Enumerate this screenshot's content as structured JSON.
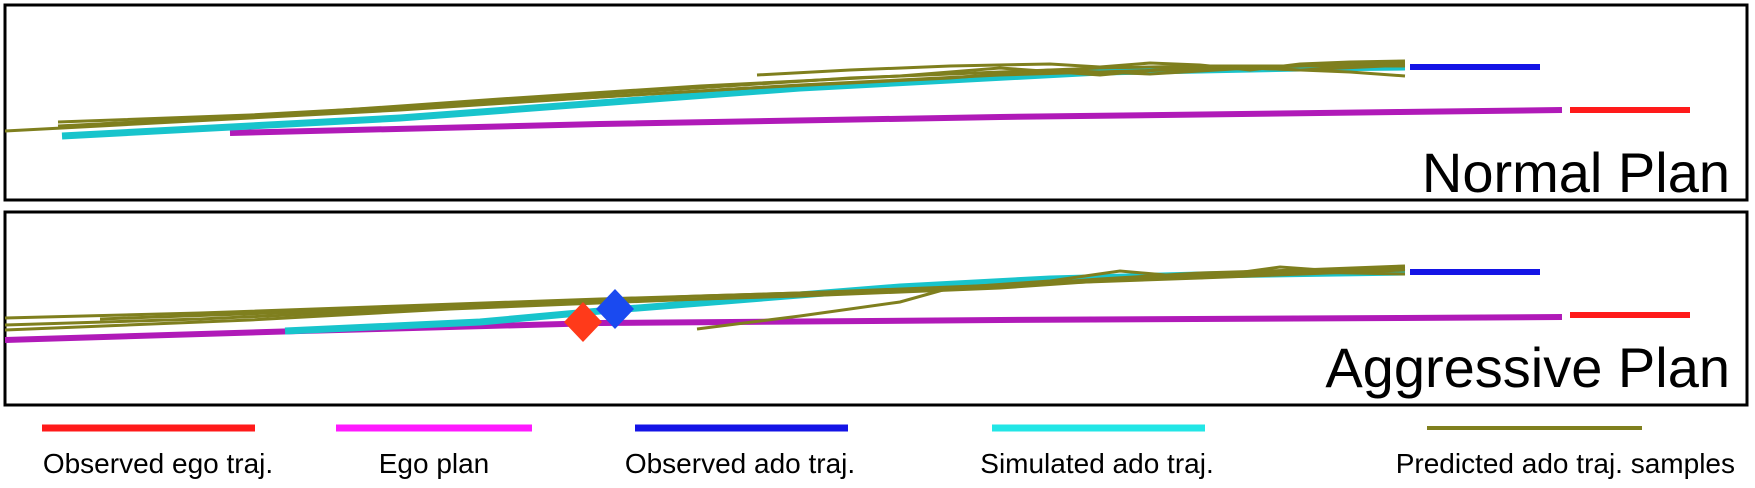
{
  "panels": [
    {
      "title": "Normal Plan"
    },
    {
      "title": "Aggressive Plan"
    }
  ],
  "legend": [
    {
      "label": "Observed ego traj.",
      "color": "#ff1a1a"
    },
    {
      "label": "Ego plan",
      "color": "#ff1aff"
    },
    {
      "label": "Observed ado traj.",
      "color": "#1414e6"
    },
    {
      "label": "Simulated ado traj.",
      "color": "#22e6e6"
    },
    {
      "label": "Predicted ado traj. samples",
      "color": "#7f7f1e"
    }
  ],
  "colors": {
    "observed_ego": "#ff1a1a",
    "ego_plan": "#b01ab8",
    "observed_ado": "#1414e6",
    "simulated_ado": "#18c4cc",
    "predicted_samples": "#7f7f1e",
    "ego_marker": "#ff3a1a",
    "ado_marker": "#1a4af0"
  }
}
